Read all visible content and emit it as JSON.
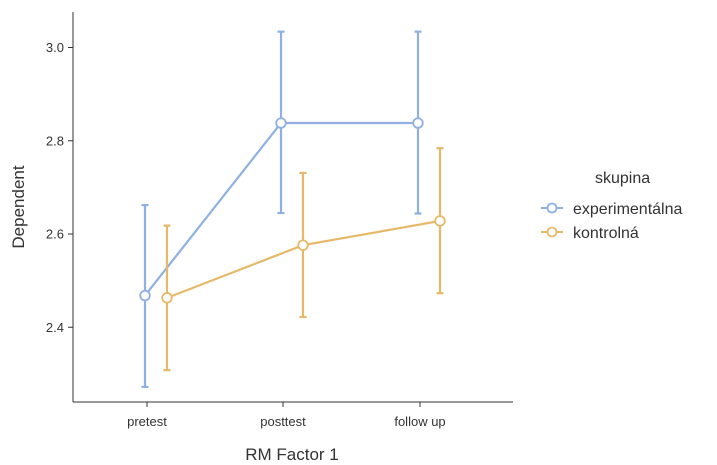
{
  "chart_data": {
    "type": "line",
    "xlabel": "RM Factor 1",
    "ylabel": "Dependent",
    "categories": [
      "pretest",
      "posttest",
      "follow up"
    ],
    "ylim": [
      2.25,
      3.08
    ],
    "yticks": [
      2.4,
      2.6,
      2.8,
      3.0
    ],
    "ytick_labels": [
      "2.4",
      "2.6",
      "2.8",
      "3.0"
    ],
    "grid": false,
    "legend": {
      "title": "skupina",
      "position": "right"
    },
    "series": [
      {
        "name": "experimentálna",
        "color": "#8fb0e0",
        "values": [
          2.468,
          2.838,
          2.838
        ],
        "ci_low": [
          2.272,
          2.645,
          2.644
        ],
        "ci_high": [
          2.662,
          3.034,
          3.034
        ]
      },
      {
        "name": "kontrolná",
        "color": "#e6b96a",
        "values": [
          2.463,
          2.576,
          2.628
        ],
        "ci_low": [
          2.308,
          2.422,
          2.473
        ],
        "ci_high": [
          2.618,
          2.731,
          2.784
        ]
      }
    ]
  }
}
